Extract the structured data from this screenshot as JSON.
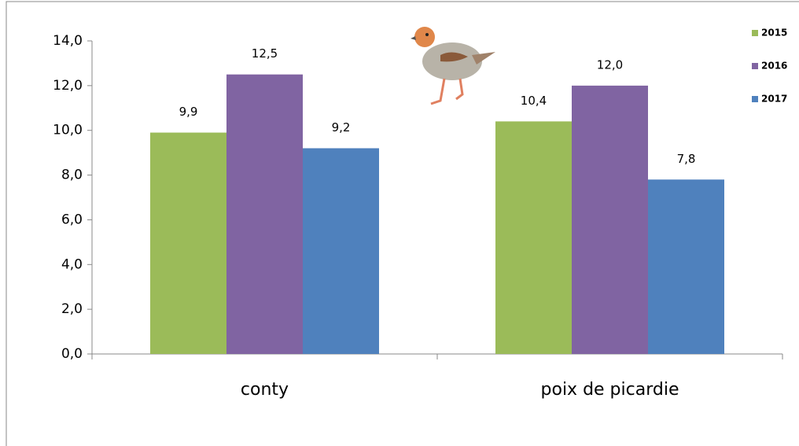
{
  "chart_data": {
    "type": "bar",
    "categories": [
      "conty",
      "poix de picardie"
    ],
    "series": [
      {
        "name": "2015",
        "color": "#9bbb59",
        "values": [
          9.9,
          10.4
        ],
        "value_labels": [
          "9,9",
          "10,4"
        ]
      },
      {
        "name": "2016",
        "color": "#8064a2",
        "values": [
          12.5,
          12.0
        ],
        "value_labels": [
          "12,5",
          "12,0"
        ]
      },
      {
        "name": "2017",
        "color": "#4f81bd",
        "values": [
          9.2,
          7.8
        ],
        "value_labels": [
          "9,2",
          "7,8"
        ]
      }
    ],
    "ylim": [
      0,
      14
    ],
    "yticks": [
      {
        "value": 0,
        "label": "0,0"
      },
      {
        "value": 2,
        "label": "2,0"
      },
      {
        "value": 4,
        "label": "4,0"
      },
      {
        "value": 6,
        "label": "6,0"
      },
      {
        "value": 8,
        "label": "8,0"
      },
      {
        "value": 10,
        "label": "10,0"
      },
      {
        "value": 12,
        "label": "12,0"
      },
      {
        "value": 14,
        "label": "14,0"
      }
    ],
    "grid": false,
    "legend": "top-right"
  }
}
